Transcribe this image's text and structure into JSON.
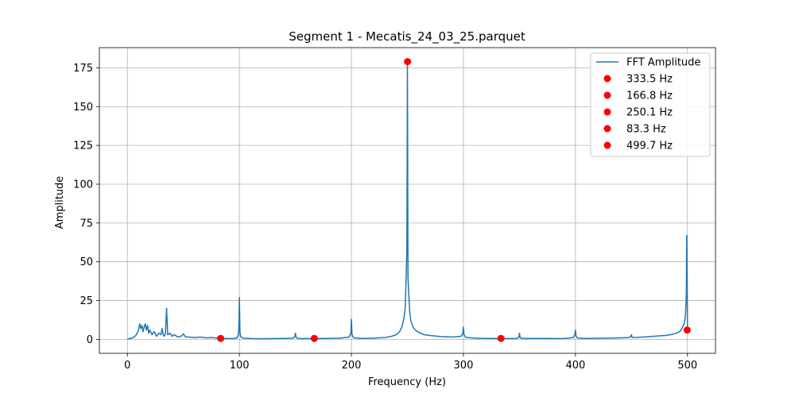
{
  "chart_data": {
    "type": "line",
    "title": "Segment 1 - Mecatis_24_03_25.parquet",
    "xlabel": "Frequency (Hz)",
    "ylabel": "Amplitude",
    "xlim": [
      -25,
      525
    ],
    "ylim": [
      -9,
      188
    ],
    "xticks": [
      0,
      100,
      200,
      300,
      400,
      500
    ],
    "yticks": [
      0,
      25,
      50,
      75,
      100,
      125,
      150,
      175
    ],
    "grid": true,
    "legend_position": "top-right",
    "series": [
      {
        "name": "FFT Amplitude",
        "color": "#1f77b4",
        "kind": "line",
        "x": [
          0,
          4,
          6,
          8,
          10,
          11,
          12,
          13,
          14,
          15,
          16,
          17,
          18,
          19,
          20,
          22,
          24,
          26,
          28,
          30,
          31,
          32,
          33,
          34,
          35,
          36,
          38,
          40,
          42,
          45,
          48,
          50,
          52,
          55,
          60,
          65,
          70,
          75,
          80,
          85,
          90,
          95,
          98,
          99,
          99.5,
          100,
          100.5,
          101,
          103,
          110,
          120,
          130,
          140,
          148,
          149.5,
          150,
          150.5,
          152,
          160,
          170,
          180,
          190,
          198,
          199.5,
          200,
          200.5,
          202,
          210,
          220,
          230,
          235,
          240,
          243,
          245,
          247,
          248,
          249,
          249.5,
          250,
          250.5,
          251,
          252,
          253,
          255,
          257,
          260,
          265,
          270,
          280,
          290,
          298,
          299.5,
          300,
          300.5,
          302,
          310,
          320,
          330,
          340,
          348,
          349.5,
          350,
          350.5,
          352,
          360,
          370,
          380,
          390,
          398,
          399.5,
          400,
          400.5,
          402,
          410,
          420,
          430,
          440,
          448,
          449.5,
          450,
          450.5,
          452,
          460,
          470,
          480,
          485,
          490,
          493,
          495,
          497,
          498,
          498.5,
          499,
          499.3,
          499.7,
          500
        ],
        "values": [
          0.2,
          0.8,
          1.5,
          3,
          6,
          10,
          7,
          9,
          5,
          8,
          10,
          6,
          9,
          4,
          6,
          3,
          5,
          2,
          4,
          3,
          7,
          3,
          2,
          4,
          20,
          3,
          4,
          2,
          3,
          1.5,
          2,
          3.5,
          1.5,
          1.5,
          1.2,
          1.5,
          1,
          1.2,
          0.8,
          0.6,
          0.5,
          0.6,
          1,
          3,
          8,
          27,
          5,
          2,
          0.8,
          0.5,
          0.4,
          0.5,
          0.6,
          0.8,
          2,
          4,
          1.5,
          0.6,
          0.5,
          0.5,
          0.6,
          0.8,
          1.5,
          4,
          13,
          3,
          1,
          0.6,
          0.8,
          1.2,
          1.8,
          3,
          5,
          8,
          14,
          20,
          43,
          60,
          179,
          40,
          32,
          18,
          12,
          8,
          6,
          4.5,
          3,
          2.5,
          1.8,
          1.5,
          2,
          4,
          8,
          3,
          1.3,
          0.8,
          0.6,
          0.5,
          0.5,
          0.6,
          1.5,
          4,
          1.2,
          0.6,
          0.6,
          0.6,
          0.5,
          0.6,
          1.2,
          3,
          6,
          2,
          0.8,
          0.6,
          0.7,
          0.8,
          1,
          1.2,
          2,
          3,
          1.3,
          1.2,
          1.5,
          2,
          2.5,
          3,
          4,
          5,
          7,
          10,
          14,
          20,
          30,
          67,
          40,
          6
        ]
      },
      {
        "kind": "markers",
        "color": "#ff0000",
        "points": [
          {
            "name": "333.5 Hz",
            "x": 333.5,
            "y": 0.6
          },
          {
            "name": "166.8 Hz",
            "x": 166.8,
            "y": 0.6
          },
          {
            "name": "250.1 Hz",
            "x": 250.1,
            "y": 179
          },
          {
            "name": "83.3 Hz",
            "x": 83.3,
            "y": 0.6
          },
          {
            "name": "499.7 Hz",
            "x": 499.7,
            "y": 6
          }
        ]
      }
    ]
  }
}
